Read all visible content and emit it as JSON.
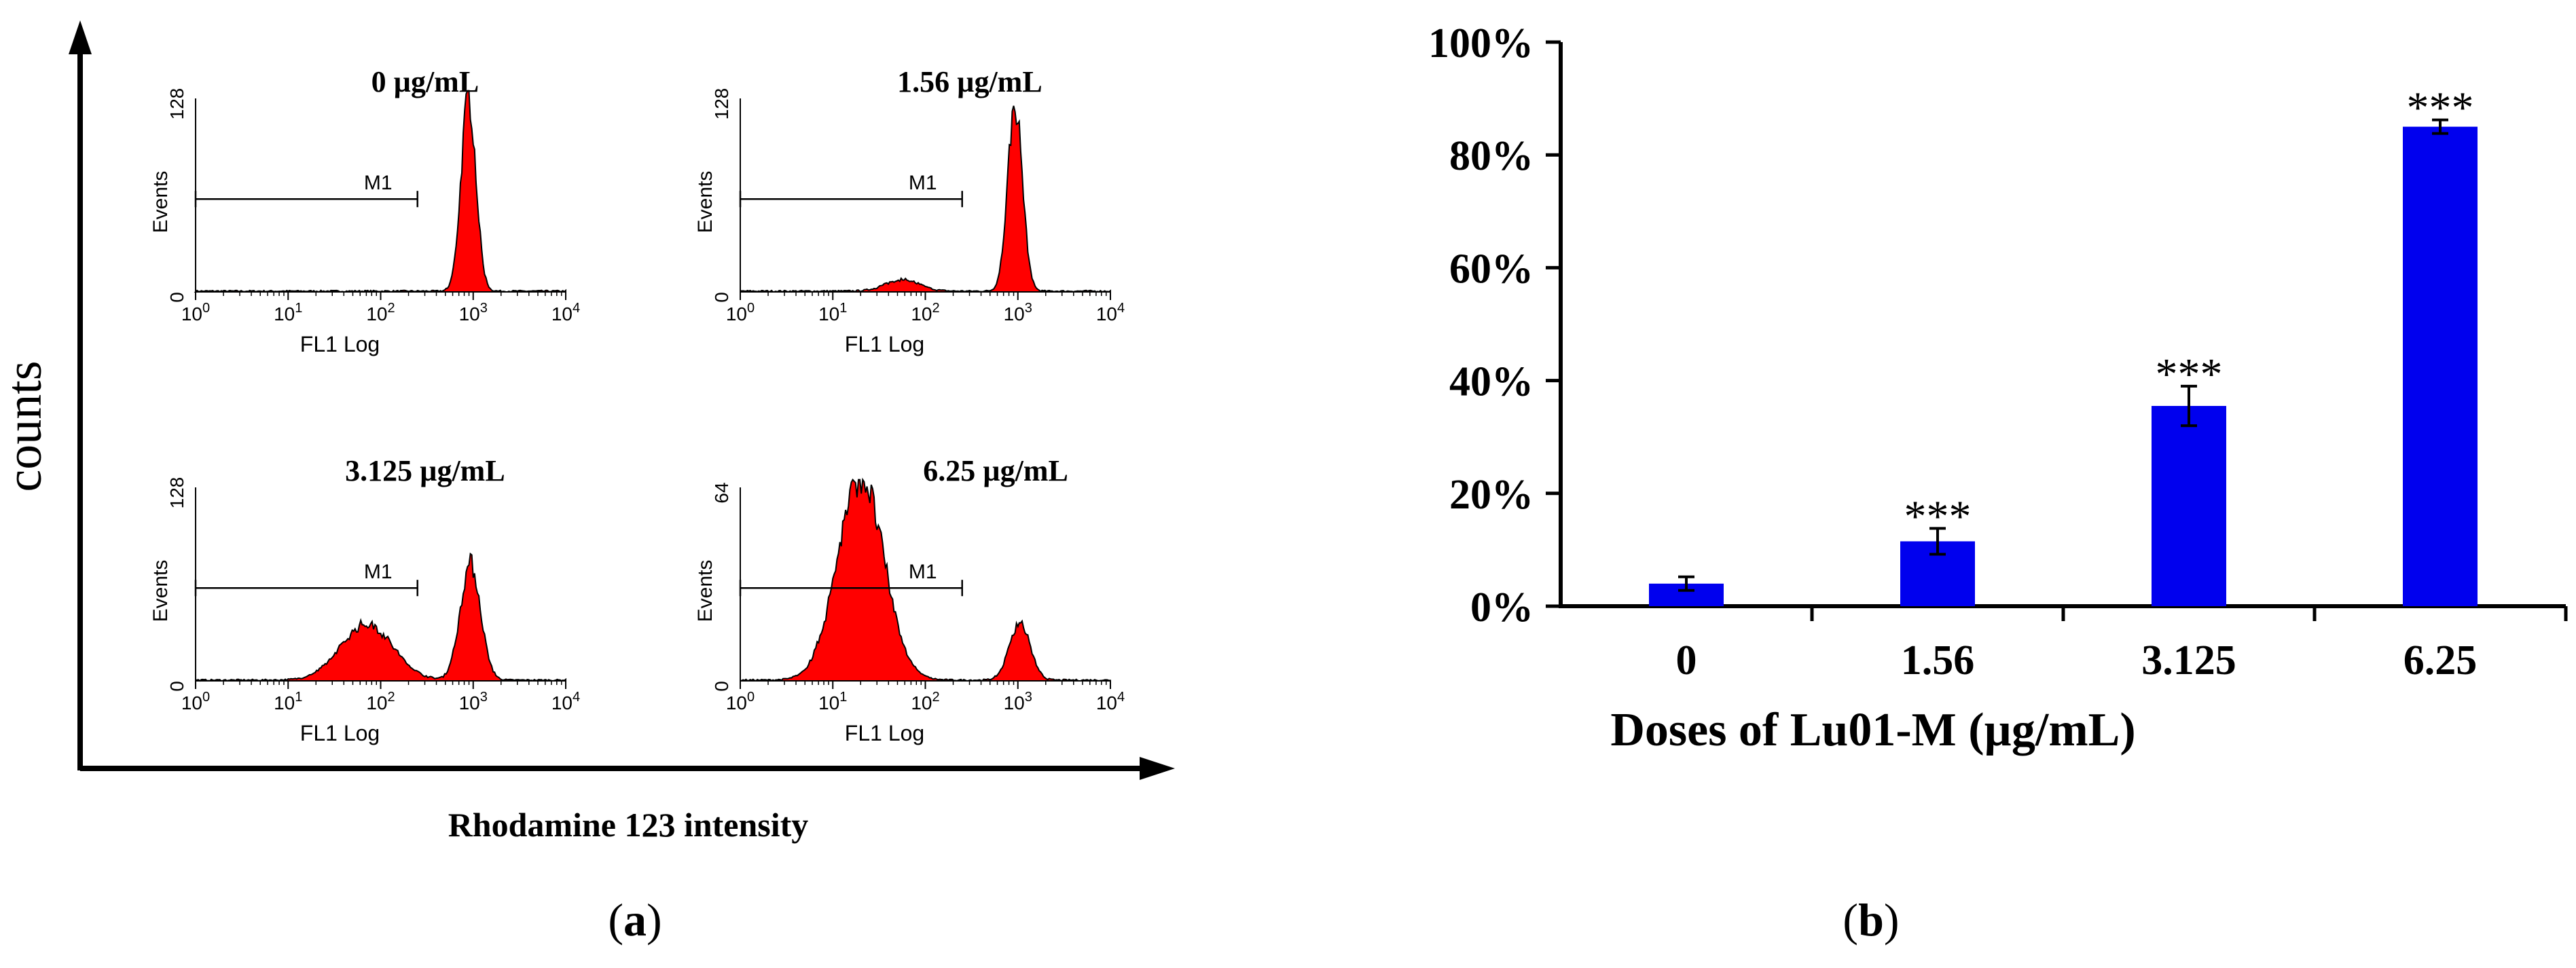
{
  "chart_data": [
    {
      "type": "histogram",
      "panel_label": "a",
      "ylabel": "counts",
      "xlabel": "Rhodamine 123 intensity",
      "panels": [
        {
          "title": "0 µg/mL",
          "ymax_label": "128",
          "ymin_label": "0",
          "y_axis_title": "Events",
          "x_axis_title": "FL1 Log",
          "gate_label": "M1",
          "gate_range": [
            1,
            250
          ],
          "peaks": [
            {
              "center": 2.95,
              "width": 0.08,
              "height": 1.0
            }
          ]
        },
        {
          "title": "1.56 µg/mL",
          "ymax_label": "128",
          "ymin_label": "0",
          "y_axis_title": "Events",
          "x_axis_title": "FL1 Log",
          "gate_label": "M1",
          "gate_range": [
            1,
            250
          ],
          "peaks": [
            {
              "center": 1.75,
              "width": 0.18,
              "height": 0.06
            },
            {
              "center": 2.97,
              "width": 0.08,
              "height": 0.96
            }
          ]
        },
        {
          "title": "3.125 µg/mL",
          "ymax_label": "128",
          "ymin_label": "0",
          "y_axis_title": "Events",
          "x_axis_title": "FL1 Log",
          "gate_label": "M1",
          "gate_range": [
            1,
            250
          ],
          "peaks": [
            {
              "center": 1.85,
              "width": 0.28,
              "height": 0.29
            },
            {
              "center": 2.97,
              "width": 0.11,
              "height": 0.6
            }
          ]
        },
        {
          "title": "6.25 µg/mL",
          "ymax_label": "64",
          "ymin_label": "0",
          "y_axis_title": "Events",
          "x_axis_title": "FL1 Log",
          "gate_label": "M1",
          "gate_range": [
            1,
            250
          ],
          "peaks": [
            {
              "center": 1.3,
              "width": 0.25,
              "height": 1.05
            },
            {
              "center": 3.02,
              "width": 0.11,
              "height": 0.3
            }
          ]
        }
      ],
      "x_ticks": [
        {
          "base": "10",
          "exp": "0"
        },
        {
          "base": "10",
          "exp": "1"
        },
        {
          "base": "10",
          "exp": "2"
        },
        {
          "base": "10",
          "exp": "3"
        },
        {
          "base": "10",
          "exp": "4"
        }
      ]
    },
    {
      "type": "bar",
      "panel_label": "b",
      "categories": [
        "0",
        "1.56",
        "3.125",
        "6.25"
      ],
      "values": [
        4,
        11.5,
        35.5,
        85
      ],
      "errors": [
        1.2,
        2.3,
        3.5,
        1.2
      ],
      "significance": [
        "",
        "***",
        "***",
        "***"
      ],
      "xlabel": "Doses of Lu01-M (µg/mL)",
      "ylabel": "",
      "ylim": [
        0,
        100
      ],
      "yticks": [
        0,
        20,
        40,
        60,
        80,
        100
      ],
      "ytick_labels": [
        "0%",
        "20%",
        "40%",
        "60%",
        "80%",
        "100%"
      ],
      "bar_color": "#0000ee"
    }
  ],
  "colors": {
    "histogram_fill": "#ff0000",
    "axis": "#000000",
    "bar": "#0000ee"
  }
}
